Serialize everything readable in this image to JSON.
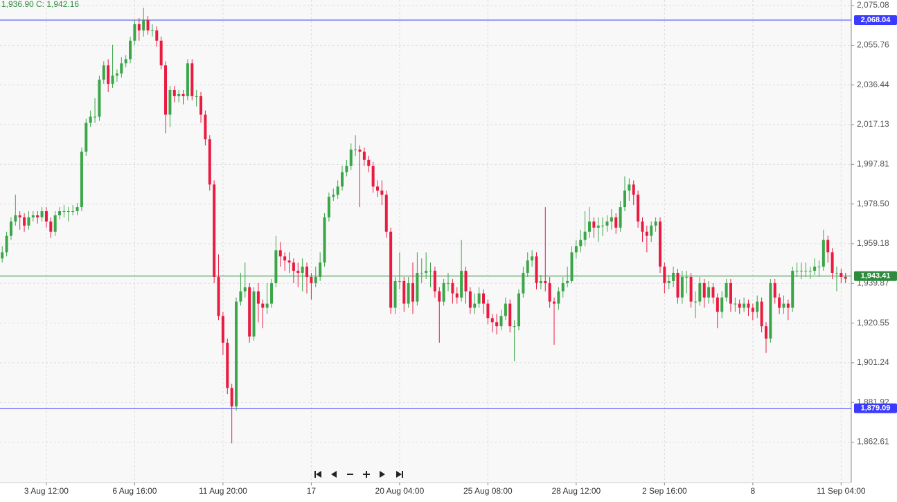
{
  "chart_data": {
    "type": "candlestick",
    "header_text": "1,936.90",
    "header_close": "C: 1,942.16",
    "up_color": "#3aa648",
    "down_color": "#ea1a41",
    "grid": true,
    "xlim": [
      -0.5,
      192.3
    ],
    "ylim": [
      1842.9,
      2077.8
    ],
    "yticks": [
      {
        "value": 2075.08,
        "label": "2,075.08"
      },
      {
        "value": 2055.76,
        "label": "2,055.76"
      },
      {
        "value": 2036.44,
        "label": "2,036.44"
      },
      {
        "value": 2017.13,
        "label": "2,017.13"
      },
      {
        "value": 1997.81,
        "label": "1,997.81"
      },
      {
        "value": 1978.5,
        "label": "1,978.50"
      },
      {
        "value": 1959.18,
        "label": "1,959.18"
      },
      {
        "value": 1939.87,
        "label": "1,939.87"
      },
      {
        "value": 1920.55,
        "label": "1,920.55"
      },
      {
        "value": 1901.24,
        "label": "1,901.24"
      },
      {
        "value": 1881.92,
        "label": "1,881.92"
      },
      {
        "value": 1862.61,
        "label": "1,862.61"
      }
    ],
    "xticks": [
      {
        "value": 10,
        "label": "3 Aug 12:00"
      },
      {
        "value": 30,
        "label": "6 Aug 16:00"
      },
      {
        "value": 50,
        "label": "11 Aug 20:00"
      },
      {
        "value": 70,
        "label": "17"
      },
      {
        "value": 90,
        "label": "20 Aug 04:00"
      },
      {
        "value": 110,
        "label": "25 Aug 08:00"
      },
      {
        "value": 130,
        "label": "28 Aug 12:00"
      },
      {
        "value": 150,
        "label": "2 Sep 16:00"
      },
      {
        "value": 170,
        "label": "8"
      },
      {
        "value": 190,
        "label": "11 Sep 04:00"
      }
    ],
    "price_lines": [
      {
        "value": 2068.04,
        "label": "2,068.04",
        "color": "#3b3bff"
      },
      {
        "value": 1879.09,
        "label": "1,879.09",
        "color": "#3b3bff"
      },
      {
        "value": 1943.41,
        "label": "1,943.41",
        "color": "#2e8b3e"
      }
    ],
    "open": [
      1952,
      1955,
      1963,
      1970,
      1973,
      1972,
      1968,
      1972,
      1973,
      1972,
      1975,
      1970,
      1965,
      1973,
      1975,
      1975,
      1975,
      1975,
      1977,
      2004,
      2018,
      2021,
      2021,
      2039,
      2046,
      2037,
      2041,
      2042,
      2047,
      2049,
      2058,
      2066,
      2063,
      2068,
      2063,
      2063,
      2058,
      2046,
      2022,
      2034,
      2031,
      2032,
      2031,
      2047,
      2031,
      2031,
      2022,
      2010,
      1988,
      1943,
      1924,
      1911,
      1889,
      1880,
      1931,
      1936,
      1938,
      1914,
      1936,
      1930,
      1928,
      1930,
      1940,
      1956,
      1953,
      1951,
      1950,
      1946,
      1945,
      1948,
      1943,
      1940,
      1943,
      1950,
      1972,
      1982,
      1983,
      1987,
      1994,
      1997,
      2005,
      2005,
      2004,
      2000,
      1997,
      1987,
      1985,
      1983,
      1965,
      1928,
      1941,
      1941,
      1930,
      1940,
      1931,
      1945,
      1945,
      1946,
      1946,
      1936,
      1931,
      1940,
      1940,
      1935,
      1933,
      1946,
      1936,
      1928,
      1930,
      1935,
      1930,
      1923,
      1921,
      1919,
      1924,
      1930,
      1919,
      1919,
      1935,
      1945,
      1951,
      1953,
      1940,
      1941,
      1940,
      1931,
      1930,
      1936,
      1940,
      1941,
      1955,
      1958,
      1961,
      1965,
      1970,
      1967,
      1968,
      1968,
      1970,
      1972,
      1967,
      1977,
      1985,
      1988,
      1983,
      1970,
      1965,
      1963,
      1968,
      1970,
      1948,
      1940,
      1941,
      1945,
      1933,
      1943,
      1943,
      1931,
      1931,
      1940,
      1933,
      1938,
      1933,
      1926,
      1933,
      1940,
      1930,
      1930,
      1928,
      1930,
      1928,
      1926,
      1931,
      1919,
      1913,
      1940,
      1933,
      1928,
      1930,
      1928,
      1946,
      1946,
      1946,
      1946,
      1946,
      1948,
      1948,
      1961,
      1955,
      1945,
      1945,
      1943
    ],
    "high": [
      1958,
      1965,
      1972,
      1983,
      1975,
      1974,
      1975,
      1975,
      1975,
      1977,
      1977,
      1972,
      1975,
      1977,
      1978,
      1977,
      1978,
      1979,
      2006,
      2020,
      2024,
      2030,
      2041,
      2048,
      2049,
      2056,
      2044,
      2050,
      2051,
      2060,
      2068,
      2069,
      2074,
      2070,
      2066,
      2065,
      2060,
      2048,
      2036,
      2036,
      2034,
      2034,
      2049,
      2049,
      2034,
      2033,
      2024,
      2012,
      1990,
      1954,
      1926,
      1913,
      1891,
      1933,
      1945,
      1950,
      1940,
      1938,
      1940,
      1932,
      1940,
      1942,
      1963,
      1960,
      1955,
      1955,
      1952,
      1950,
      1952,
      1950,
      1945,
      1948,
      1955,
      1974,
      1984,
      1986,
      1990,
      1997,
      2000,
      2008,
      2012,
      2007,
      2006,
      2002,
      1999,
      1990,
      1990,
      1985,
      1967,
      1943,
      1955,
      1943,
      1943,
      1950,
      1955,
      1952,
      1955,
      1950,
      1948,
      1938,
      1942,
      1945,
      1942,
      1938,
      1961,
      1948,
      1938,
      1935,
      1938,
      1937,
      1932,
      1925,
      1925,
      1927,
      1933,
      1932,
      1922,
      1937,
      1948,
      1955,
      1956,
      1955,
      1944,
      1977,
      1943,
      1933,
      1938,
      1943,
      1948,
      1958,
      1961,
      1966,
      1975,
      1977,
      1972,
      1972,
      1972,
      1973,
      1976,
      1974,
      1980,
      1992,
      1991,
      1990,
      1985,
      1972,
      1968,
      1970,
      1972,
      1972,
      1950,
      1944,
      1948,
      1947,
      1946,
      1946,
      1945,
      1936,
      1943,
      1942,
      1941,
      1940,
      1935,
      1936,
      1942,
      1942,
      1933,
      1932,
      1933,
      1932,
      1930,
      1934,
      1933,
      1921,
      1942,
      1942,
      1935,
      1934,
      1932,
      1948,
      1950,
      1950,
      1950,
      1948,
      1952,
      1951,
      1966,
      1963,
      1957,
      1948,
      1947,
      1945
    ],
    "low": [
      1950,
      1953,
      1961,
      1968,
      1966,
      1965,
      1966,
      1970,
      1969,
      1970,
      1967,
      1962,
      1963,
      1971,
      1972,
      1970,
      1973,
      1973,
      1975,
      2002,
      2016,
      2018,
      2019,
      2037,
      2033,
      2035,
      2038,
      2040,
      2045,
      2047,
      2056,
      2058,
      2060,
      2061,
      2060,
      2055,
      2044,
      2013,
      2016,
      2028,
      2028,
      2027,
      2029,
      2029,
      2026,
      2018,
      2007,
      1985,
      1940,
      1922,
      1905,
      1886,
      1862,
      1878,
      1929,
      1933,
      1911,
      1912,
      1921,
      1918,
      1925,
      1928,
      1938,
      1948,
      1946,
      1945,
      1940,
      1938,
      1936,
      1935,
      1932,
      1938,
      1941,
      1948,
      1970,
      1980,
      1981,
      1985,
      1992,
      1995,
      2002,
      1977,
      1997,
      1994,
      1984,
      1982,
      1978,
      1962,
      1925,
      1925,
      1937,
      1926,
      1928,
      1925,
      1929,
      1940,
      1942,
      1938,
      1933,
      1911,
      1929,
      1936,
      1930,
      1930,
      1931,
      1930,
      1925,
      1925,
      1928,
      1925,
      1920,
      1916,
      1915,
      1917,
      1922,
      1916,
      1902,
      1917,
      1933,
      1943,
      1948,
      1937,
      1937,
      1936,
      1928,
      1910,
      1927,
      1933,
      1938,
      1940,
      1952,
      1955,
      1958,
      1962,
      1962,
      1960,
      1963,
      1965,
      1966,
      1964,
      1965,
      1975,
      1980,
      1978,
      1967,
      1960,
      1955,
      1960,
      1965,
      1945,
      1935,
      1937,
      1938,
      1930,
      1930,
      1935,
      1928,
      1923,
      1929,
      1928,
      1930,
      1930,
      1918,
      1923,
      1931,
      1926,
      1926,
      1925,
      1926,
      1924,
      1922,
      1923,
      1916,
      1906,
      1911,
      1930,
      1925,
      1925,
      1922,
      1926,
      1943,
      1942,
      1943,
      1942,
      1944,
      1943,
      1946,
      1950,
      1942,
      1936,
      1940,
      1940
    ],
    "close": [
      1955,
      1963,
      1970,
      1973,
      1972,
      1968,
      1972,
      1973,
      1972,
      1975,
      1970,
      1965,
      1973,
      1975,
      1975,
      1975,
      1975,
      1977,
      2004,
      2018,
      2021,
      2021,
      2039,
      2046,
      2037,
      2041,
      2042,
      2047,
      2049,
      2058,
      2066,
      2063,
      2068,
      2063,
      2063,
      2058,
      2046,
      2022,
      2034,
      2031,
      2032,
      2031,
      2047,
      2031,
      2031,
      2022,
      2010,
      1988,
      1943,
      1924,
      1911,
      1889,
      1880,
      1931,
      1936,
      1938,
      1914,
      1936,
      1930,
      1928,
      1930,
      1940,
      1956,
      1953,
      1951,
      1950,
      1946,
      1945,
      1948,
      1943,
      1940,
      1943,
      1950,
      1972,
      1982,
      1983,
      1987,
      1994,
      1997,
      2005,
      2005,
      2004,
      2000,
      1997,
      1987,
      1985,
      1983,
      1965,
      1928,
      1941,
      1941,
      1930,
      1940,
      1931,
      1945,
      1945,
      1946,
      1946,
      1936,
      1931,
      1940,
      1940,
      1935,
      1933,
      1946,
      1936,
      1928,
      1930,
      1935,
      1930,
      1923,
      1921,
      1919,
      1924,
      1930,
      1919,
      1919,
      1935,
      1945,
      1951,
      1953,
      1940,
      1941,
      1940,
      1931,
      1930,
      1936,
      1940,
      1941,
      1955,
      1958,
      1961,
      1965,
      1970,
      1967,
      1968,
      1968,
      1970,
      1972,
      1967,
      1977,
      1985,
      1988,
      1983,
      1970,
      1965,
      1963,
      1968,
      1970,
      1948,
      1940,
      1941,
      1945,
      1933,
      1943,
      1943,
      1931,
      1931,
      1940,
      1933,
      1938,
      1933,
      1926,
      1933,
      1940,
      1930,
      1930,
      1928,
      1930,
      1928,
      1926,
      1931,
      1919,
      1913,
      1940,
      1933,
      1928,
      1930,
      1928,
      1946,
      1946,
      1946,
      1946,
      1946,
      1948,
      1948,
      1961,
      1955,
      1945,
      1945,
      1943,
      1942.16
    ]
  }
}
